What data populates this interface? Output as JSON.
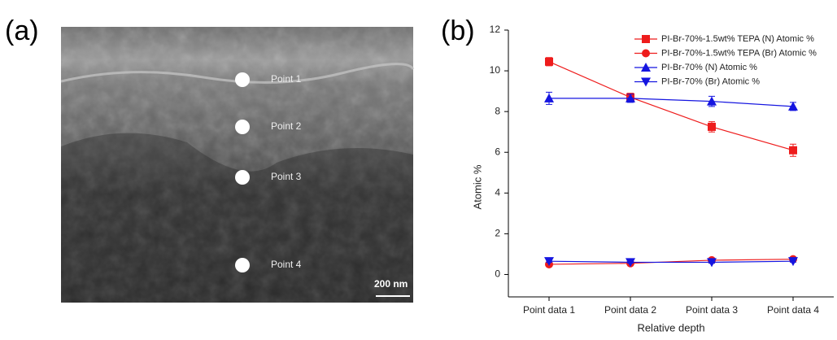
{
  "panel_a": {
    "label": "(a)",
    "points": [
      "Point 1",
      "Point 2",
      "Point 3",
      "Point 4"
    ],
    "scale_bar": "200 nm"
  },
  "chart_data": {
    "type": "line",
    "panel_label": "(b)",
    "x_label": "Relative depth",
    "y_label": "Atomic %",
    "categories": [
      "Point data 1",
      "Point data 2",
      "Point data 3",
      "Point data 4"
    ],
    "ylim": [
      -1.1,
      12
    ],
    "yticks": [
      0,
      2,
      4,
      6,
      8,
      10,
      12
    ],
    "legend": "upper right",
    "series": [
      {
        "name": "PI-Br-70%-1.5wt% TEPA (N) Atomic %",
        "color": "#ee1c1c",
        "marker": "square",
        "values": [
          10.45,
          8.7,
          7.25,
          6.1
        ],
        "errors": [
          0.2,
          0.2,
          0.25,
          0.3
        ]
      },
      {
        "name": "PI-Br-70%-1.5wt% TEPA (Br) Atomic %",
        "color": "#ee1c1c",
        "marker": "circle",
        "values": [
          0.5,
          0.55,
          0.7,
          0.75
        ],
        "errors": [
          0.05,
          0.05,
          0.05,
          0.05
        ]
      },
      {
        "name": "PI-Br-70% (N) Atomic %",
        "color": "#1515e0",
        "marker": "triangle-up",
        "values": [
          8.65,
          8.65,
          8.5,
          8.25
        ],
        "errors": [
          0.3,
          0.2,
          0.25,
          0.2
        ]
      },
      {
        "name": "PI-Br-70% (Br) Atomic %",
        "color": "#1515e0",
        "marker": "triangle-down",
        "values": [
          0.65,
          0.6,
          0.6,
          0.65
        ],
        "errors": [
          0.05,
          0.05,
          0.05,
          0.05
        ]
      }
    ]
  }
}
